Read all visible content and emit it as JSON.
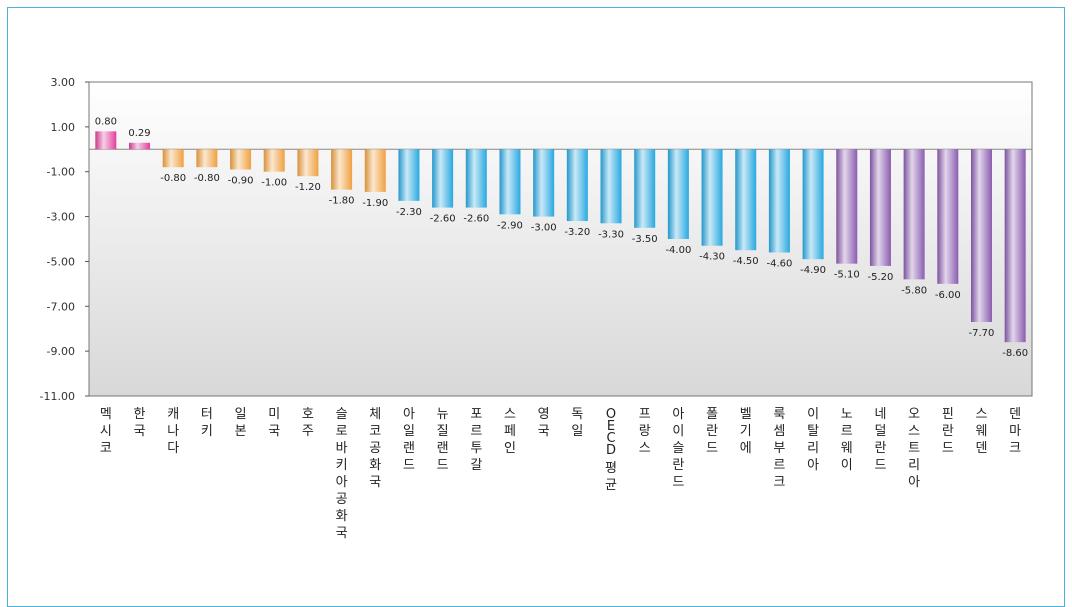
{
  "chart_data": {
    "type": "bar",
    "categories": [
      "멕시코",
      "한국",
      "캐나다",
      "터키",
      "일본",
      "미국",
      "호주",
      "슬로바키아공화국",
      "체코공화국",
      "아일랜드",
      "뉴질랜드",
      "포르투갈",
      "스페인",
      "영국",
      "독일",
      "OECD 평균",
      "프랑스",
      "아이슬란드",
      "폴란드",
      "벨기에",
      "룩셈부르크",
      "이탈리아",
      "노르웨이",
      "네덜란드",
      "오스트리아",
      "핀란드",
      "스웨덴",
      "덴마크"
    ],
    "values": [
      0.8,
      0.29,
      -0.8,
      -0.8,
      -0.9,
      -1.0,
      -1.2,
      -1.8,
      -1.9,
      -2.3,
      -2.6,
      -2.6,
      -2.9,
      -3.0,
      -3.2,
      -3.3,
      -3.5,
      -4.0,
      -4.3,
      -4.5,
      -4.6,
      -4.9,
      -5.1,
      -5.2,
      -5.8,
      -6.0,
      -7.7,
      -8.6
    ],
    "value_labels": [
      "0.80",
      "0.29",
      "-0.80",
      "-0.80",
      "-0.90",
      "-1.00",
      "-1.20",
      "-1.80",
      "-1.90",
      "-2.30",
      "-2.60",
      "-2.60",
      "-2.90",
      "-3.00",
      "-3.20",
      "-3.30",
      "-3.50",
      "-4.00",
      "-4.30",
      "-4.50",
      "-4.60",
      "-4.90",
      "-5.10",
      "-5.20",
      "-5.80",
      "-6.00",
      "-7.70",
      "-8.60"
    ],
    "bar_groups": [
      "pink",
      "pink",
      "orange",
      "orange",
      "orange",
      "orange",
      "orange",
      "orange",
      "orange",
      "blue",
      "blue",
      "blue",
      "blue",
      "blue",
      "blue",
      "blue",
      "blue",
      "blue",
      "blue",
      "blue",
      "blue",
      "blue",
      "purple",
      "purple",
      "purple",
      "purple",
      "purple",
      "purple"
    ],
    "colors": {
      "pink": "#e0409a",
      "orange": "#f0a040",
      "blue": "#28a8e0",
      "purple": "#8a5cb0"
    },
    "yticks": [
      "3.00",
      "1.00",
      "-1.00",
      "-3.00",
      "-5.00",
      "-7.00",
      "-9.00",
      "-11.00"
    ],
    "ytick_values": [
      3,
      1,
      -1,
      -3,
      -5,
      -7,
      -9,
      -11
    ],
    "ylim": [
      -11,
      3
    ],
    "title": "",
    "xlabel": "",
    "ylabel": "",
    "grid": false
  }
}
